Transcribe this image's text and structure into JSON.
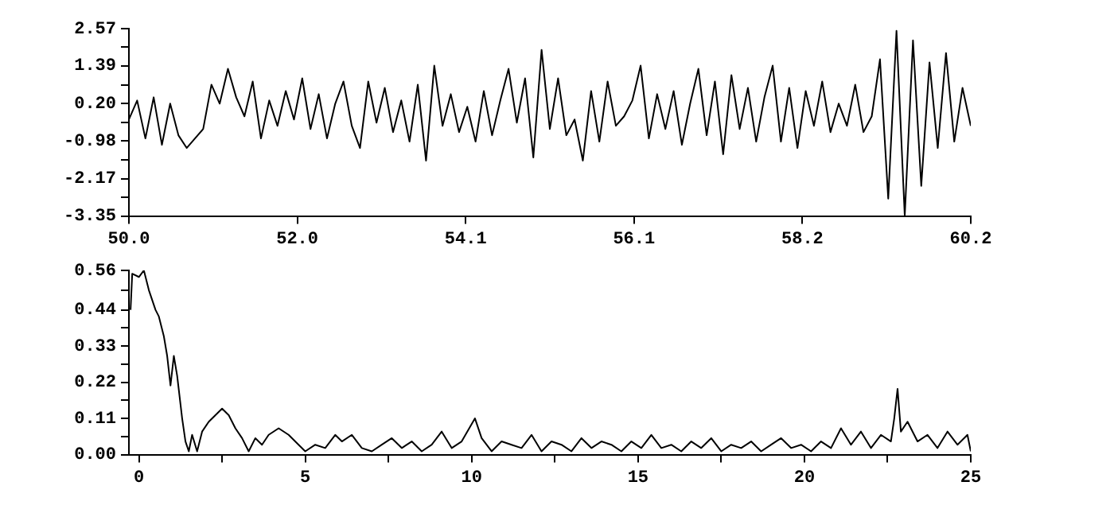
{
  "chart_data": [
    {
      "type": "line",
      "xlim": [
        50.0,
        60.2
      ],
      "ylim": [
        -3.35,
        2.57
      ],
      "marker": "none",
      "xticks": [
        {
          "value": 50,
          "label": "50.0"
        },
        {
          "value": 52.04,
          "label": "52.0"
        },
        {
          "value": 54.08,
          "label": "54.1"
        },
        {
          "value": 56.12,
          "label": "56.1"
        },
        {
          "value": 58.16,
          "label": "58.2"
        },
        60.2
      ],
      "yticks": [
        2.57,
        {
          "value": 1.98,
          "label": null
        },
        1.39,
        {
          "value": 0.795,
          "label": null
        },
        {
          "value": 0.2,
          "label": "0.20"
        },
        {
          "value": -0.39,
          "label": null
        },
        -0.98,
        {
          "value": -1.575,
          "label": null
        },
        -2.17,
        {
          "value": -2.76,
          "label": null
        },
        -3.35
      ],
      "series": [
        {
          "color": "#000000",
          "x": [
            50.0,
            50.1,
            50.2,
            50.3,
            50.4,
            50.5,
            50.6,
            50.7,
            50.8,
            50.9,
            51.0,
            51.1,
            51.2,
            51.3,
            51.4,
            51.5,
            51.6,
            51.7,
            51.8,
            51.9,
            52.0,
            52.1,
            52.2,
            52.3,
            52.4,
            52.5,
            52.6,
            52.7,
            52.8,
            52.9,
            53.0,
            53.1,
            53.2,
            53.3,
            53.4,
            53.5,
            53.6,
            53.7,
            53.8,
            53.9,
            54.0,
            54.1,
            54.2,
            54.3,
            54.4,
            54.5,
            54.6,
            54.7,
            54.8,
            54.9,
            55.0,
            55.1,
            55.2,
            55.3,
            55.4,
            55.5,
            55.6,
            55.7,
            55.8,
            55.9,
            56.0,
            56.1,
            56.2,
            56.3,
            56.4,
            56.5,
            56.6,
            56.7,
            56.8,
            56.9,
            57.0,
            57.1,
            57.2,
            57.3,
            57.4,
            57.5,
            57.6,
            57.7,
            57.8,
            57.9,
            58.0,
            58.1,
            58.2,
            58.3,
            58.4,
            58.5,
            58.6,
            58.7,
            58.8,
            58.9,
            59.0,
            59.1,
            59.2,
            59.3,
            59.4,
            59.5,
            59.6,
            59.7,
            59.8,
            59.9,
            60.0,
            60.1,
            60.2
          ],
          "values": [
            -0.3,
            0.3,
            -0.9,
            0.4,
            -1.1,
            0.2,
            -0.8,
            -1.2,
            -0.9,
            -0.6,
            0.8,
            0.2,
            1.3,
            0.4,
            -0.2,
            0.9,
            -0.9,
            0.3,
            -0.5,
            0.6,
            -0.3,
            1.0,
            -0.6,
            0.5,
            -0.9,
            0.2,
            0.9,
            -0.5,
            -1.2,
            0.9,
            -0.4,
            0.7,
            -0.7,
            0.3,
            -1.0,
            0.8,
            -1.6,
            1.4,
            -0.5,
            0.5,
            -0.7,
            0.1,
            -1.0,
            0.6,
            -0.8,
            0.3,
            1.3,
            -0.4,
            1.0,
            -1.5,
            1.9,
            -0.6,
            1.0,
            -0.8,
            -0.3,
            -1.6,
            0.6,
            -1.0,
            0.9,
            -0.5,
            -0.2,
            0.3,
            1.4,
            -0.9,
            0.5,
            -0.6,
            0.6,
            -1.1,
            0.2,
            1.3,
            -0.8,
            0.9,
            -1.4,
            1.1,
            -0.6,
            0.7,
            -1.0,
            0.4,
            1.4,
            -1.0,
            0.7,
            -1.2,
            0.6,
            -0.5,
            0.9,
            -0.7,
            0.2,
            -0.5,
            0.8,
            -0.7,
            -0.2,
            1.6,
            -2.8,
            2.5,
            -3.35,
            2.2,
            -2.4,
            1.5,
            -1.2,
            1.8,
            -1.0,
            0.7,
            -0.5
          ]
        }
      ]
    },
    {
      "type": "line",
      "xlim": [
        -0.3,
        25
      ],
      "ylim": [
        0,
        0.56
      ],
      "marker": "none",
      "xticks": [
        0,
        {
          "value": 2.5,
          "label": null
        },
        5,
        {
          "value": 7.5,
          "label": null
        },
        10,
        {
          "value": 12.5,
          "label": null
        },
        15,
        {
          "value": 17.5,
          "label": null
        },
        20,
        {
          "value": 22.5,
          "label": null
        },
        25
      ],
      "yticks": [
        {
          "value": 0,
          "label": "0.00"
        },
        {
          "value": 0.055,
          "label": null
        },
        0.11,
        {
          "value": 0.165,
          "label": null
        },
        0.22,
        {
          "value": 0.275,
          "label": null
        },
        0.33,
        {
          "value": 0.385,
          "label": null
        },
        0.44,
        {
          "value": 0.5,
          "label": null
        },
        0.56
      ],
      "series": [
        {
          "color": "#000000",
          "x": [
            -0.25,
            -0.2,
            0,
            0.15,
            0.3,
            0.5,
            0.6,
            0.75,
            0.85,
            0.95,
            1.05,
            1.15,
            1.3,
            1.4,
            1.5,
            1.6,
            1.75,
            1.9,
            2.1,
            2.3,
            2.5,
            2.7,
            2.9,
            3.1,
            3.3,
            3.5,
            3.7,
            3.9,
            4.2,
            4.5,
            4.8,
            5.0,
            5.3,
            5.6,
            5.9,
            6.1,
            6.4,
            6.7,
            7.0,
            7.3,
            7.6,
            7.9,
            8.2,
            8.5,
            8.8,
            9.1,
            9.4,
            9.7,
            10.1,
            10.3,
            10.6,
            10.9,
            11.2,
            11.5,
            11.8,
            12.1,
            12.4,
            12.7,
            13.0,
            13.3,
            13.6,
            13.9,
            14.2,
            14.5,
            14.8,
            15.1,
            15.4,
            15.7,
            16.0,
            16.3,
            16.6,
            16.9,
            17.2,
            17.5,
            17.8,
            18.1,
            18.4,
            18.7,
            19.0,
            19.3,
            19.6,
            19.9,
            20.2,
            20.5,
            20.8,
            21.1,
            21.4,
            21.7,
            22.0,
            22.3,
            22.6,
            22.7,
            22.8,
            22.9,
            23.1,
            23.4,
            23.7,
            24.0,
            24.3,
            24.6,
            24.9,
            25.0
          ],
          "values": [
            0.44,
            0.55,
            0.54,
            0.56,
            0.5,
            0.44,
            0.42,
            0.36,
            0.3,
            0.21,
            0.3,
            0.24,
            0.11,
            0.04,
            0.01,
            0.06,
            0.01,
            0.07,
            0.1,
            0.12,
            0.14,
            0.12,
            0.08,
            0.05,
            0.01,
            0.05,
            0.03,
            0.06,
            0.08,
            0.06,
            0.03,
            0.01,
            0.03,
            0.02,
            0.06,
            0.04,
            0.06,
            0.02,
            0.01,
            0.03,
            0.05,
            0.02,
            0.04,
            0.01,
            0.03,
            0.07,
            0.02,
            0.04,
            0.11,
            0.05,
            0.01,
            0.04,
            0.03,
            0.02,
            0.06,
            0.01,
            0.04,
            0.03,
            0.01,
            0.05,
            0.02,
            0.04,
            0.03,
            0.01,
            0.04,
            0.02,
            0.06,
            0.02,
            0.03,
            0.01,
            0.04,
            0.02,
            0.05,
            0.01,
            0.03,
            0.02,
            0.04,
            0.01,
            0.03,
            0.05,
            0.02,
            0.03,
            0.01,
            0.04,
            0.02,
            0.08,
            0.03,
            0.07,
            0.02,
            0.06,
            0.04,
            0.11,
            0.2,
            0.07,
            0.1,
            0.04,
            0.06,
            0.02,
            0.07,
            0.03,
            0.06,
            0.01
          ]
        }
      ]
    }
  ]
}
